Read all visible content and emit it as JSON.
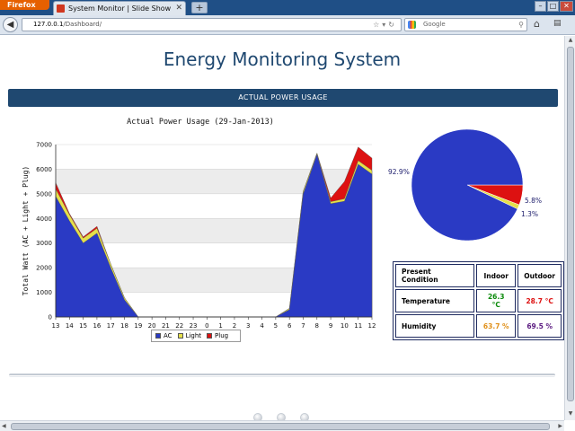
{
  "browser": {
    "app_button": "Firefox",
    "tab_title": "System Monitor | Slide Show",
    "new_tab": "+",
    "url_host": "127.0.0.1",
    "url_path": "/Dashboard/",
    "search_placeholder": "Google"
  },
  "page": {
    "title": "Energy Monitoring System",
    "section_header": "ACTUAL POWER USAGE"
  },
  "chart_data": [
    {
      "type": "area",
      "stacked": true,
      "title": "Actual Power Usage (29-Jan-2013)",
      "xlabel": "",
      "ylabel": "Total Watt (AC + Light + Plug)",
      "ylim": [
        0,
        7000
      ],
      "yticks": [
        0,
        1000,
        2000,
        3000,
        4000,
        5000,
        6000,
        7000
      ],
      "grid": "horizontal alternating bands",
      "legend_position": "bottom-center",
      "categories": [
        "13",
        "14",
        "15",
        "16",
        "17",
        "18",
        "19",
        "20",
        "21",
        "22",
        "23",
        "0",
        "1",
        "2",
        "3",
        "4",
        "5",
        "6",
        "7",
        "8",
        "9",
        "10",
        "11",
        "12"
      ],
      "series": [
        {
          "name": "AC",
          "color": "#2a3ac4",
          "values": [
            4900,
            3900,
            3000,
            3400,
            2000,
            700,
            0,
            0,
            0,
            0,
            0,
            0,
            0,
            0,
            0,
            0,
            0,
            300,
            5000,
            6600,
            4600,
            4700,
            6200,
            5800
          ]
        },
        {
          "name": "Light",
          "color": "#e5e04a",
          "values": [
            300,
            250,
            200,
            200,
            150,
            80,
            0,
            0,
            0,
            0,
            0,
            0,
            0,
            0,
            0,
            0,
            0,
            50,
            100,
            50,
            80,
            100,
            150,
            150
          ]
        },
        {
          "name": "Plug",
          "color": "#dd1111",
          "values": [
            250,
            50,
            50,
            80,
            0,
            0,
            0,
            0,
            0,
            0,
            0,
            0,
            0,
            0,
            0,
            0,
            0,
            0,
            0,
            0,
            150,
            700,
            550,
            500
          ]
        }
      ]
    },
    {
      "type": "pie",
      "labels": [
        "92.9%",
        "1.3%",
        "5.8%"
      ],
      "series": [
        {
          "name": "AC",
          "value": 92.9,
          "color": "#2a3ac4"
        },
        {
          "name": "Light",
          "value": 1.3,
          "color": "#e5e04a"
        },
        {
          "name": "Plug",
          "value": 5.8,
          "color": "#dd1111"
        }
      ]
    }
  ],
  "conditions": {
    "headers": [
      "Present Condition",
      "Indoor",
      "Outdoor"
    ],
    "rows": [
      {
        "label": "Temperature",
        "indoor": "26.3 °C",
        "outdoor": "28.7 °C",
        "indoor_color": "#0a8a0a",
        "outdoor_color": "#dd1111"
      },
      {
        "label": "Humidity",
        "indoor": "63.7 %",
        "outdoor": "69.5 %",
        "indoor_color": "#e0901a",
        "outdoor_color": "#5a1a80"
      }
    ]
  }
}
